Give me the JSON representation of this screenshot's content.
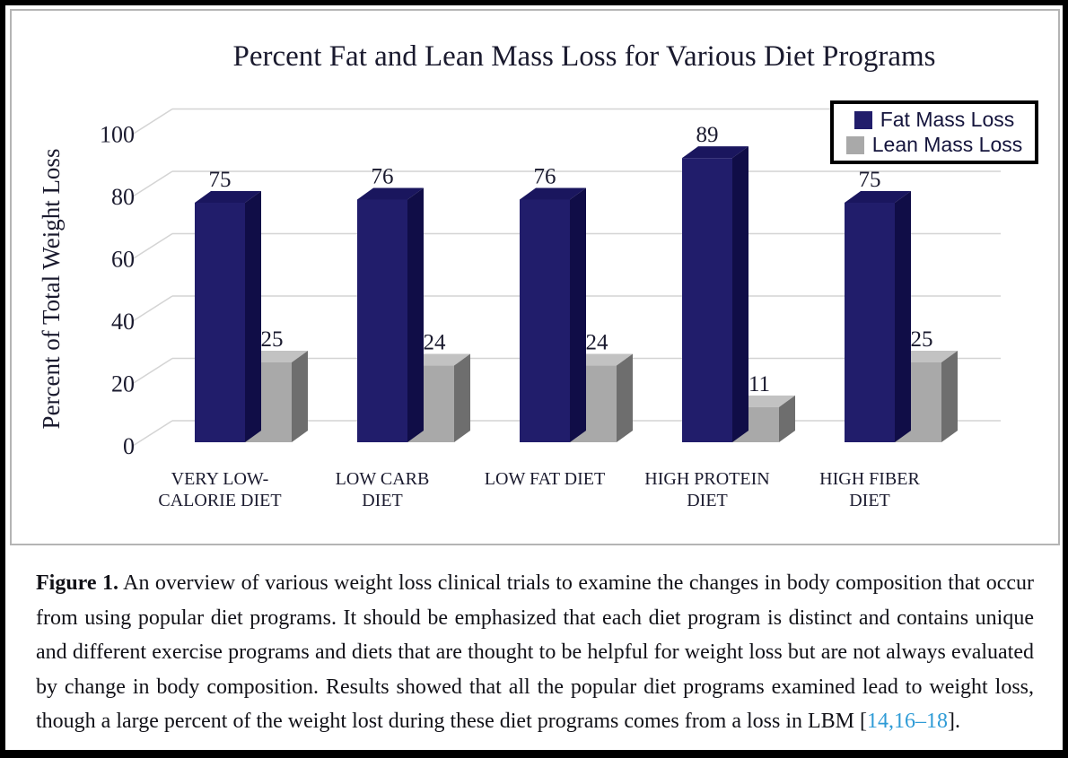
{
  "chart_data": {
    "type": "bar",
    "style": "3d-clustered-column",
    "title": "Percent Fat and Lean Mass Loss for Various Diet Programs",
    "ylabel": "Percent of Total Weight Loss",
    "xlabel": "",
    "categories": [
      "VERY LOW-CALORIE DIET",
      "LOW CARB DIET",
      "LOW FAT DIET",
      "HIGH PROTEIN DIET",
      "HIGH FIBER DIET"
    ],
    "category_label_lines": [
      [
        "VERY LOW-",
        "CALORIE DIET"
      ],
      [
        "LOW CARB",
        "DIET"
      ],
      [
        "LOW FAT DIET"
      ],
      [
        "HIGH PROTEIN",
        "DIET"
      ],
      [
        "HIGH FIBER",
        "DIET"
      ]
    ],
    "series": [
      {
        "name": "Fat Mass Loss",
        "values": [
          75,
          76,
          76,
          89,
          75
        ],
        "color": "#211d6b",
        "color_top": "#1a165e",
        "color_side": "#100d47"
      },
      {
        "name": "Lean Mass Loss",
        "values": [
          25,
          24,
          24,
          11,
          25
        ],
        "color": "#a9a9a9",
        "color_top": "#c2c2c2",
        "color_side": "#6e6e6e"
      }
    ],
    "data_labels_shown": true,
    "yticks": [
      0,
      20,
      40,
      60,
      80,
      100
    ],
    "ylim": [
      0,
      100
    ],
    "grid": true,
    "gridline_color": "#d4d4d4",
    "text_color": "#1a1a2e",
    "legend_position": "top-right",
    "legend_border_color": "#000000"
  },
  "figure": {
    "label": "Figure 1.",
    "text_before": " An overview of various weight loss clinical trials to examine the changes in body composition that occur from using popular diet programs.  It should be emphasized that each diet program is distinct and contains unique and different exercise programs and diets that are thought to be helpful for weight loss but are not always evaluated by change in body composition. Results showed that all the popular diet programs examined lead to weight loss, though a large percent of the weight lost during these diet programs comes from a loss in LBM [",
    "citation": "14,16–18",
    "text_after": "].",
    "citation_color": "#2e9bd6"
  }
}
